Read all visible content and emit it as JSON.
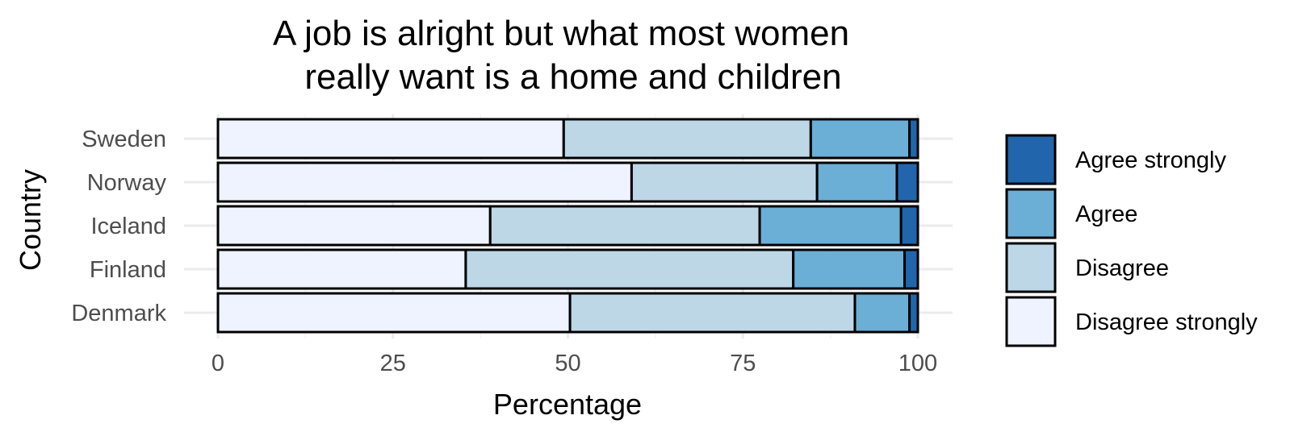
{
  "chart_data": {
    "type": "bar",
    "orientation": "horizontal",
    "stacked": true,
    "title_lines": [
      "A job is alright but what most women",
      "really want is a home and children"
    ],
    "xlabel": "Percentage",
    "ylabel": "Country",
    "xlim": [
      0,
      100
    ],
    "xticks": [
      "0",
      "25",
      "50",
      "75",
      "100"
    ],
    "grid": true,
    "legend_position": "right",
    "categories": [
      "Sweden",
      "Norway",
      "Iceland",
      "Finland",
      "Denmark"
    ],
    "series": [
      {
        "name": "Disagree strongly",
        "color": "#eff3ff",
        "values": [
          49.4,
          59.1,
          38.9,
          35.4,
          50.3
        ]
      },
      {
        "name": "Disagree",
        "color": "#bdd7e7",
        "values": [
          35.3,
          26.5,
          38.5,
          46.8,
          40.7
        ]
      },
      {
        "name": "Agree",
        "color": "#6baed6",
        "values": [
          14.1,
          11.4,
          20.2,
          15.9,
          7.8
        ]
      },
      {
        "name": "Agree strongly",
        "color": "#2166ac",
        "values": [
          1.2,
          3.0,
          2.4,
          1.9,
          1.2
        ]
      }
    ],
    "legend_order": [
      "Agree strongly",
      "Agree",
      "Disagree",
      "Disagree strongly"
    ]
  }
}
